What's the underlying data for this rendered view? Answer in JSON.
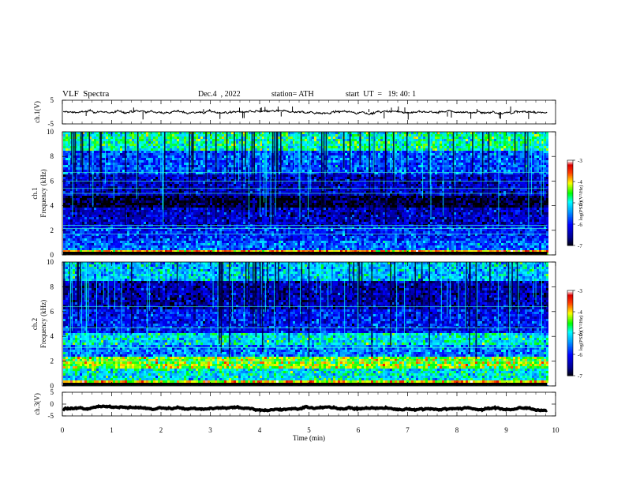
{
  "header": {
    "title": "VLF  Spectra",
    "date": "Dec.4  , 2022",
    "station": "station= ATH",
    "start": "start  UT  =   19: 40: 1"
  },
  "chart_data": [
    {
      "type": "line",
      "panel": "ch1-waveform",
      "ylabel": "ch.1(V)",
      "ylim": [
        -5,
        5
      ],
      "yticks": [
        "5",
        "-5"
      ],
      "level": 0,
      "noise": "small"
    },
    {
      "type": "heatmap",
      "panel": "ch1-spectrogram",
      "ylabel": "ch.1\nFrequency  (kHz)",
      "ylim": [
        0,
        10
      ],
      "yticks": [
        "0",
        "2",
        "4",
        "6",
        "8",
        "10"
      ],
      "colorbar": {
        "label": "log(PSD)(V²/Hz)",
        "range": [
          -7,
          -3
        ],
        "ticks": [
          "-3",
          "-4",
          "-5",
          "-6",
          "-7"
        ]
      },
      "bands": [
        {
          "from_khz": 0.0,
          "to_khz": 0.3,
          "level": -3.8
        },
        {
          "from_khz": 0.3,
          "to_khz": 1.2,
          "level": -5.6
        },
        {
          "from_khz": 1.2,
          "to_khz": 2.3,
          "level": -5.9
        },
        {
          "from_khz": 2.3,
          "to_khz": 3.8,
          "level": -6.3
        },
        {
          "from_khz": 3.8,
          "to_khz": 4.8,
          "level": -6.9
        },
        {
          "from_khz": 4.8,
          "to_khz": 6.5,
          "level": -6.3
        },
        {
          "from_khz": 6.5,
          "to_khz": 8.5,
          "level": -5.7
        },
        {
          "from_khz": 8.5,
          "to_khz": 10.0,
          "level": -4.8
        }
      ],
      "lines_khz": [
        1.7,
        2.15,
        2.4,
        5.0,
        5.4,
        6.0,
        6.7
      ]
    },
    {
      "type": "heatmap",
      "panel": "ch2-spectrogram",
      "ylabel": "ch.2\nFrequency  (kHz)",
      "ylim": [
        0,
        10
      ],
      "yticks": [
        "0",
        "2",
        "4",
        "6",
        "8",
        "10"
      ],
      "colorbar": {
        "label": "log(PSD)(V²/Hz)",
        "range": [
          -7,
          -3
        ],
        "ticks": [
          "-3",
          "-4",
          "-5",
          "-6",
          "-7"
        ]
      },
      "bands": [
        {
          "from_khz": 0.0,
          "to_khz": 0.4,
          "level": -3.9
        },
        {
          "from_khz": 0.4,
          "to_khz": 1.4,
          "level": -5.0
        },
        {
          "from_khz": 1.4,
          "to_khz": 2.4,
          "level": -4.3
        },
        {
          "from_khz": 2.4,
          "to_khz": 3.4,
          "level": -5.5
        },
        {
          "from_khz": 3.4,
          "to_khz": 4.2,
          "level": -5.0
        },
        {
          "from_khz": 4.2,
          "to_khz": 6.2,
          "level": -6.0
        },
        {
          "from_khz": 6.2,
          "to_khz": 8.5,
          "level": -6.4
        },
        {
          "from_khz": 8.5,
          "to_khz": 10.0,
          "level": -5.2
        }
      ],
      "lines_khz": [
        2.0,
        3.1,
        4.7,
        6.4
      ]
    },
    {
      "type": "line",
      "panel": "ch3-waveform",
      "ylabel": "ch.3(V)",
      "ylim": [
        -5,
        5
      ],
      "yticks": [
        "5",
        "0",
        "-5"
      ],
      "level": -1.8,
      "noise": "thick"
    }
  ],
  "xaxis": {
    "label": "Time  (min)",
    "range": [
      0,
      10
    ],
    "ticks": [
      "0",
      "1",
      "2",
      "3",
      "4",
      "5",
      "6",
      "7",
      "8",
      "9",
      "10"
    ],
    "data_end": 9.83
  }
}
